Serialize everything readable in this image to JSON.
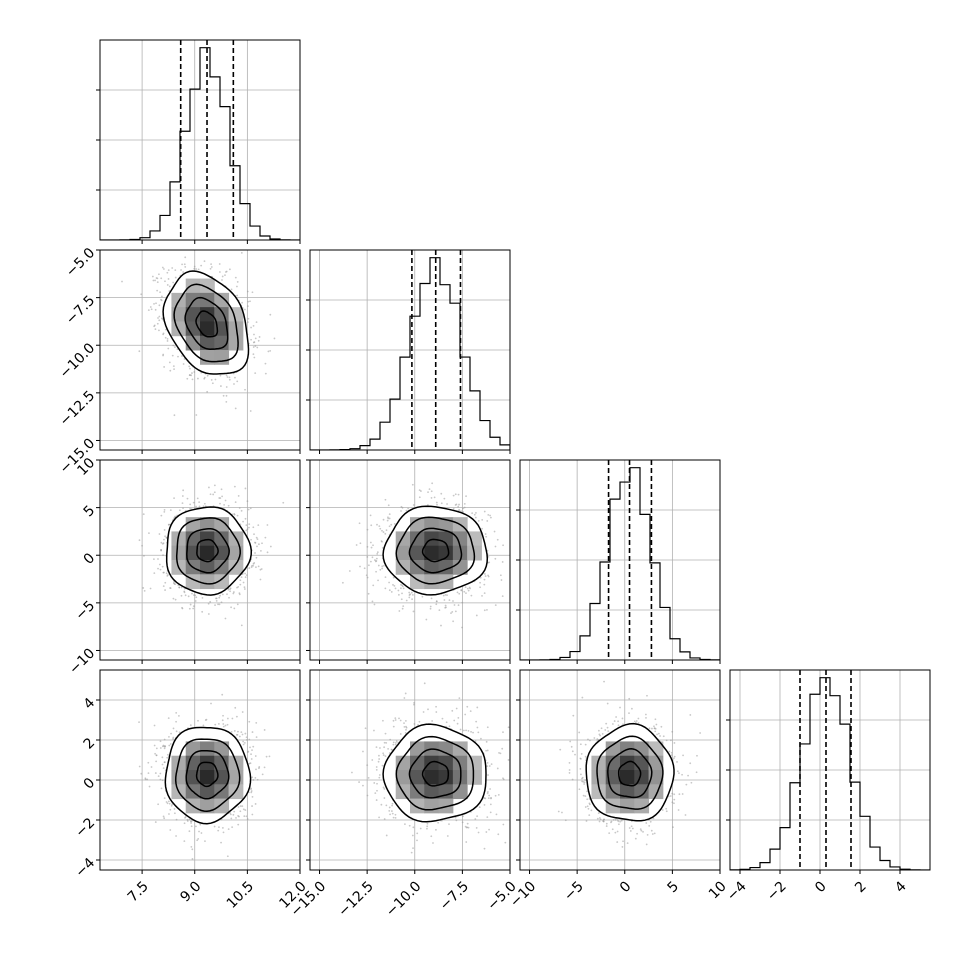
{
  "chart_data": {
    "type": "corner",
    "title": "",
    "grid": true,
    "colors": {
      "line": "#000000",
      "grid": "#b0b0b0",
      "sample": "#9a9a9a"
    },
    "parameters": [
      {
        "index": 0,
        "range": [
          6.3,
          12.0
        ],
        "ticks": [
          7.5,
          9.0,
          10.5,
          12.0
        ],
        "tick_labels": [
          "7.5",
          "9.0",
          "10.5",
          "12.0"
        ],
        "mean": 9.35,
        "std": 0.6,
        "quantiles": [
          8.6,
          9.35,
          10.1
        ]
      },
      {
        "index": 1,
        "range": [
          -15.5,
          -5.0
        ],
        "ticks": [
          -15.0,
          -12.5,
          -10.0,
          -7.5,
          -5.0
        ],
        "tick_labels": [
          "−15.0",
          "−12.5",
          "−10.0",
          "−7.5",
          "−5.0"
        ],
        "mean": -8.9,
        "std": 1.35,
        "quantiles": [
          -10.15,
          -8.9,
          -7.6
        ]
      },
      {
        "index": 2,
        "range": [
          -11.0,
          10.0
        ],
        "ticks": [
          -10,
          -5,
          0,
          5,
          10
        ],
        "tick_labels": [
          "−10",
          "−5",
          "0",
          "5",
          "10"
        ],
        "mean": 0.5,
        "std": 2.3,
        "quantiles": [
          -1.7,
          0.5,
          2.8
        ]
      },
      {
        "index": 3,
        "range": [
          -4.5,
          5.5
        ],
        "ticks": [
          -4,
          -2,
          0,
          2,
          4
        ],
        "tick_labels": [
          "−4",
          "−2",
          "0",
          "2",
          "4"
        ],
        "mean": 0.3,
        "std": 1.2,
        "quantiles": [
          -1.0,
          0.3,
          1.55
        ]
      }
    ],
    "correlations": [
      {
        "pair": [
          0,
          1
        ],
        "rho": -0.3
      },
      {
        "pair": [
          0,
          2
        ],
        "rho": 0.0
      },
      {
        "pair": [
          1,
          2
        ],
        "rho": 0.0
      },
      {
        "pair": [
          0,
          3
        ],
        "rho": 0.0
      },
      {
        "pair": [
          1,
          3
        ],
        "rho": 0.0
      },
      {
        "pair": [
          2,
          3
        ],
        "rho": 0.0
      }
    ],
    "contour_levels_sigma": [
      0.5,
      1.0,
      1.5,
      2.0
    ]
  }
}
